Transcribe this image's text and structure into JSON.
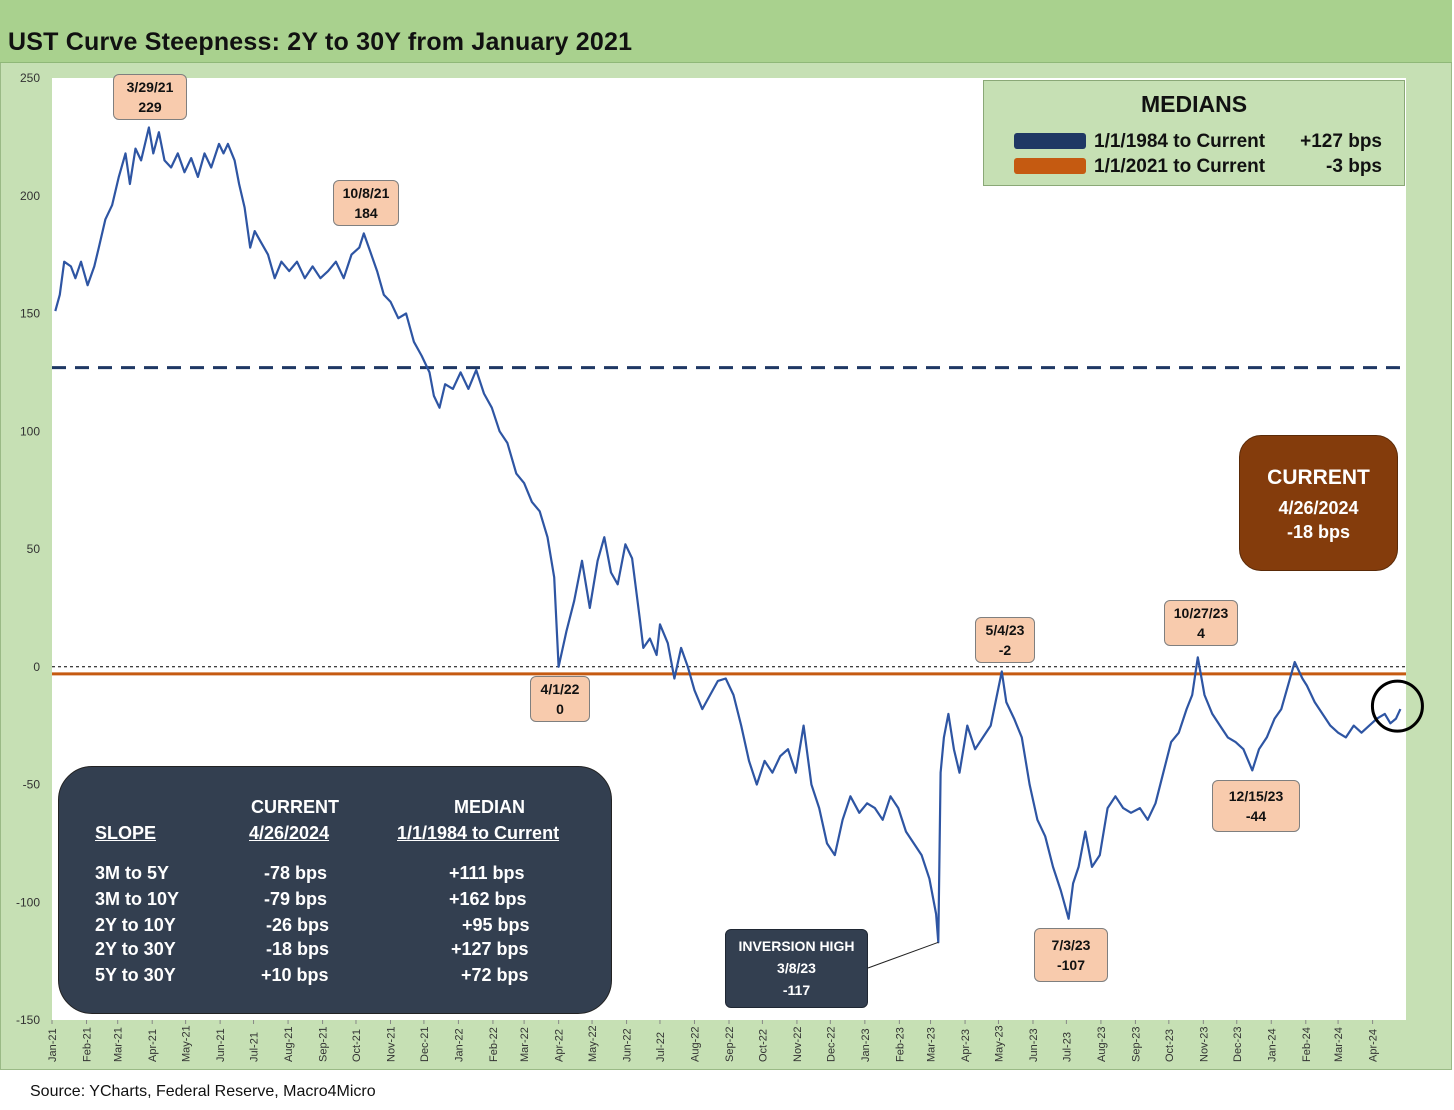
{
  "title": "UST Curve Steepness: 2Y to 30Y from January 2021",
  "source": "Source: YCharts, Federal Reserve, Macro4Micro",
  "colors": {
    "series": "#2e55a3",
    "median_long": "#1f3864",
    "median_short": "#c55a11",
    "frame": "#c6e0b4",
    "title_bar": "#a9d18e",
    "current_box": "#843c0c",
    "dark_box": "#333f50",
    "callout": "#f8cbad"
  },
  "medians": {
    "title": "MEDIANS",
    "rows": [
      {
        "label": "1/1/1984 to Current",
        "value": "+127 bps",
        "color": "#1f3864"
      },
      {
        "label": "1/1/2021 to Current",
        "value": "-3 bps",
        "color": "#c55a11"
      }
    ]
  },
  "current_box": {
    "title": "CURRENT",
    "date": "4/26/2024",
    "value": "-18 bps"
  },
  "inversion_box": {
    "title": "INVERSION HIGH",
    "date": "3/8/23",
    "value": "-117"
  },
  "callouts": [
    {
      "date": "3/29/21",
      "value": "229"
    },
    {
      "date": "10/8/21",
      "value": "184"
    },
    {
      "date": "4/1/22",
      "value": "0"
    },
    {
      "date": "5/4/23",
      "value": "-2"
    },
    {
      "date": "10/27/23",
      "value": "4"
    },
    {
      "date": "12/15/23",
      "value": "-44"
    },
    {
      "date": "7/3/23",
      "value": "-107"
    }
  ],
  "slope_table": {
    "headers": {
      "slope": "SLOPE",
      "current_top": "CURRENT",
      "current_bottom": "4/26/2024",
      "median_top": "MEDIAN",
      "median_bottom": "1/1/1984 to Current"
    },
    "rows": [
      {
        "slope": "3M to 5Y",
        "current": "-78 bps",
        "median": "+111 bps"
      },
      {
        "slope": "3M to 10Y",
        "current": "-79 bps",
        "median": "+162 bps"
      },
      {
        "slope": "2Y to 10Y",
        "current": "-26 bps",
        "median": "+95 bps"
      },
      {
        "slope": "2Y to 30Y",
        "current": "-18 bps",
        "median": "+127 bps"
      },
      {
        "slope": "5Y to 30Y",
        "current": "+10 bps",
        "median": "+72 bps"
      }
    ]
  },
  "chart_data": {
    "type": "line",
    "title": "UST Curve Steepness: 2Y to 30Y from January 2021",
    "xlabel": "",
    "ylabel": "",
    "ylim": [
      -150,
      250
    ],
    "yticks": [
      250,
      200,
      150,
      100,
      50,
      0,
      -50,
      -100,
      -150
    ],
    "x_tick_labels": [
      "Jan-21",
      "Feb-21",
      "Mar-21",
      "Apr-21",
      "May-21",
      "Jun-21",
      "Jul-21",
      "Aug-21",
      "Sep-21",
      "Oct-21",
      "Nov-21",
      "Dec-21",
      "Jan-22",
      "Feb-22",
      "Mar-22",
      "Apr-22",
      "May-22",
      "Jun-22",
      "Jul-22",
      "Aug-22",
      "Sep-22",
      "Oct-22",
      "Nov-22",
      "Dec-22",
      "Jan-23",
      "Feb-23",
      "Mar-23",
      "Apr-23",
      "May-23",
      "Jun-23",
      "Jul-23",
      "Aug-23",
      "Sep-23",
      "Oct-23",
      "Nov-23",
      "Dec-23",
      "Jan-24",
      "Feb-24",
      "Mar-24",
      "Apr-24"
    ],
    "reference_lines": [
      {
        "name": "1/1/1984 to Current",
        "y": 127,
        "style": "dashed",
        "color": "#1f3864"
      },
      {
        "name": "1/1/2021 to Current",
        "y": -3,
        "style": "solid",
        "color": "#c55a11"
      },
      {
        "y": 0,
        "style": "dotted",
        "color": "#000000"
      }
    ],
    "series": [
      {
        "name": "2Y to 30Y",
        "color": "#2e55a3",
        "points": [
          [
            "2021-01-04",
            151
          ],
          [
            "2021-01-08",
            158
          ],
          [
            "2021-01-12",
            172
          ],
          [
            "2021-01-18",
            170
          ],
          [
            "2021-01-22",
            165
          ],
          [
            "2021-01-27",
            172
          ],
          [
            "2021-02-02",
            162
          ],
          [
            "2021-02-08",
            170
          ],
          [
            "2021-02-12",
            178
          ],
          [
            "2021-02-18",
            190
          ],
          [
            "2021-02-24",
            196
          ],
          [
            "2021-03-02",
            208
          ],
          [
            "2021-03-08",
            218
          ],
          [
            "2021-03-12",
            205
          ],
          [
            "2021-03-17",
            220
          ],
          [
            "2021-03-22",
            215
          ],
          [
            "2021-03-29",
            229
          ],
          [
            "2021-04-02",
            218
          ],
          [
            "2021-04-07",
            227
          ],
          [
            "2021-04-12",
            215
          ],
          [
            "2021-04-18",
            212
          ],
          [
            "2021-04-24",
            218
          ],
          [
            "2021-04-30",
            210
          ],
          [
            "2021-05-06",
            216
          ],
          [
            "2021-05-12",
            208
          ],
          [
            "2021-05-18",
            218
          ],
          [
            "2021-05-24",
            212
          ],
          [
            "2021-05-31",
            222
          ],
          [
            "2021-06-04",
            218
          ],
          [
            "2021-06-08",
            222
          ],
          [
            "2021-06-14",
            215
          ],
          [
            "2021-06-18",
            205
          ],
          [
            "2021-06-23",
            195
          ],
          [
            "2021-06-28",
            178
          ],
          [
            "2021-07-02",
            185
          ],
          [
            "2021-07-08",
            180
          ],
          [
            "2021-07-14",
            175
          ],
          [
            "2021-07-20",
            165
          ],
          [
            "2021-07-26",
            172
          ],
          [
            "2021-08-02",
            168
          ],
          [
            "2021-08-09",
            172
          ],
          [
            "2021-08-16",
            165
          ],
          [
            "2021-08-23",
            170
          ],
          [
            "2021-08-30",
            165
          ],
          [
            "2021-09-06",
            168
          ],
          [
            "2021-09-13",
            172
          ],
          [
            "2021-09-20",
            165
          ],
          [
            "2021-09-27",
            175
          ],
          [
            "2021-10-04",
            178
          ],
          [
            "2021-10-08",
            184
          ],
          [
            "2021-10-14",
            176
          ],
          [
            "2021-10-20",
            168
          ],
          [
            "2021-10-26",
            158
          ],
          [
            "2021-11-01",
            155
          ],
          [
            "2021-11-08",
            148
          ],
          [
            "2021-11-15",
            150
          ],
          [
            "2021-11-22",
            138
          ],
          [
            "2021-11-29",
            132
          ],
          [
            "2021-12-06",
            125
          ],
          [
            "2021-12-10",
            115
          ],
          [
            "2021-12-15",
            110
          ],
          [
            "2021-12-20",
            120
          ],
          [
            "2021-12-27",
            118
          ],
          [
            "2022-01-03",
            125
          ],
          [
            "2022-01-10",
            118
          ],
          [
            "2022-01-17",
            126
          ],
          [
            "2022-01-24",
            116
          ],
          [
            "2022-01-31",
            110
          ],
          [
            "2022-02-07",
            100
          ],
          [
            "2022-02-14",
            95
          ],
          [
            "2022-02-22",
            82
          ],
          [
            "2022-03-01",
            78
          ],
          [
            "2022-03-08",
            70
          ],
          [
            "2022-03-15",
            66
          ],
          [
            "2022-03-22",
            55
          ],
          [
            "2022-03-28",
            38
          ],
          [
            "2022-04-01",
            0
          ],
          [
            "2022-04-08",
            15
          ],
          [
            "2022-04-15",
            28
          ],
          [
            "2022-04-22",
            45
          ],
          [
            "2022-04-29",
            25
          ],
          [
            "2022-05-06",
            45
          ],
          [
            "2022-05-12",
            55
          ],
          [
            "2022-05-18",
            40
          ],
          [
            "2022-05-24",
            35
          ],
          [
            "2022-05-31",
            52
          ],
          [
            "2022-06-06",
            46
          ],
          [
            "2022-06-13",
            20
          ],
          [
            "2022-06-16",
            8
          ],
          [
            "2022-06-22",
            12
          ],
          [
            "2022-06-28",
            5
          ],
          [
            "2022-07-01",
            18
          ],
          [
            "2022-07-08",
            10
          ],
          [
            "2022-07-14",
            -5
          ],
          [
            "2022-07-20",
            8
          ],
          [
            "2022-07-26",
            0
          ],
          [
            "2022-08-01",
            -10
          ],
          [
            "2022-08-08",
            -18
          ],
          [
            "2022-08-15",
            -12
          ],
          [
            "2022-08-22",
            -6
          ],
          [
            "2022-08-29",
            -5
          ],
          [
            "2022-09-05",
            -12
          ],
          [
            "2022-09-12",
            -25
          ],
          [
            "2022-09-19",
            -40
          ],
          [
            "2022-09-26",
            -50
          ],
          [
            "2022-10-03",
            -40
          ],
          [
            "2022-10-10",
            -45
          ],
          [
            "2022-10-17",
            -38
          ],
          [
            "2022-10-24",
            -35
          ],
          [
            "2022-10-31",
            -45
          ],
          [
            "2022-11-07",
            -25
          ],
          [
            "2022-11-14",
            -50
          ],
          [
            "2022-11-21",
            -60
          ],
          [
            "2022-11-28",
            -75
          ],
          [
            "2022-12-05",
            -80
          ],
          [
            "2022-12-12",
            -65
          ],
          [
            "2022-12-19",
            -55
          ],
          [
            "2022-12-27",
            -62
          ],
          [
            "2023-01-03",
            -58
          ],
          [
            "2023-01-10",
            -60
          ],
          [
            "2023-01-17",
            -65
          ],
          [
            "2023-01-24",
            -55
          ],
          [
            "2023-01-31",
            -60
          ],
          [
            "2023-02-07",
            -70
          ],
          [
            "2023-02-14",
            -75
          ],
          [
            "2023-02-21",
            -80
          ],
          [
            "2023-02-28",
            -90
          ],
          [
            "2023-03-06",
            -105
          ],
          [
            "2023-03-08",
            -117
          ],
          [
            "2023-03-10",
            -45
          ],
          [
            "2023-03-13",
            -30
          ],
          [
            "2023-03-17",
            -20
          ],
          [
            "2023-03-22",
            -35
          ],
          [
            "2023-03-27",
            -45
          ],
          [
            "2023-04-03",
            -25
          ],
          [
            "2023-04-10",
            -35
          ],
          [
            "2023-04-17",
            -30
          ],
          [
            "2023-04-24",
            -25
          ],
          [
            "2023-05-04",
            -2
          ],
          [
            "2023-05-08",
            -15
          ],
          [
            "2023-05-15",
            -22
          ],
          [
            "2023-05-22",
            -30
          ],
          [
            "2023-05-29",
            -50
          ],
          [
            "2023-06-05",
            -65
          ],
          [
            "2023-06-12",
            -72
          ],
          [
            "2023-06-19",
            -85
          ],
          [
            "2023-06-26",
            -95
          ],
          [
            "2023-07-03",
            -107
          ],
          [
            "2023-07-07",
            -92
          ],
          [
            "2023-07-12",
            -85
          ],
          [
            "2023-07-18",
            -70
          ],
          [
            "2023-07-24",
            -85
          ],
          [
            "2023-07-31",
            -80
          ],
          [
            "2023-08-07",
            -60
          ],
          [
            "2023-08-14",
            -55
          ],
          [
            "2023-08-21",
            -60
          ],
          [
            "2023-08-28",
            -62
          ],
          [
            "2023-09-05",
            -60
          ],
          [
            "2023-09-12",
            -65
          ],
          [
            "2023-09-19",
            -58
          ],
          [
            "2023-09-26",
            -45
          ],
          [
            "2023-10-03",
            -32
          ],
          [
            "2023-10-10",
            -28
          ],
          [
            "2023-10-17",
            -18
          ],
          [
            "2023-10-22",
            -12
          ],
          [
            "2023-10-27",
            4
          ],
          [
            "2023-11-02",
            -12
          ],
          [
            "2023-11-09",
            -20
          ],
          [
            "2023-11-16",
            -25
          ],
          [
            "2023-11-23",
            -30
          ],
          [
            "2023-11-30",
            -32
          ],
          [
            "2023-12-07",
            -35
          ],
          [
            "2023-12-15",
            -44
          ],
          [
            "2023-12-21",
            -35
          ],
          [
            "2023-12-28",
            -30
          ],
          [
            "2024-01-04",
            -22
          ],
          [
            "2024-01-10",
            -18
          ],
          [
            "2024-01-16",
            -8
          ],
          [
            "2024-01-22",
            2
          ],
          [
            "2024-01-29",
            -5
          ],
          [
            "2024-02-02",
            -8
          ],
          [
            "2024-02-09",
            -15
          ],
          [
            "2024-02-16",
            -20
          ],
          [
            "2024-02-23",
            -25
          ],
          [
            "2024-03-01",
            -28
          ],
          [
            "2024-03-08",
            -30
          ],
          [
            "2024-03-15",
            -25
          ],
          [
            "2024-03-22",
            -28
          ],
          [
            "2024-03-29",
            -25
          ],
          [
            "2024-04-05",
            -22
          ],
          [
            "2024-04-12",
            -20
          ],
          [
            "2024-04-17",
            -24
          ],
          [
            "2024-04-22",
            -22
          ],
          [
            "2024-04-26",
            -18
          ]
        ]
      }
    ]
  }
}
